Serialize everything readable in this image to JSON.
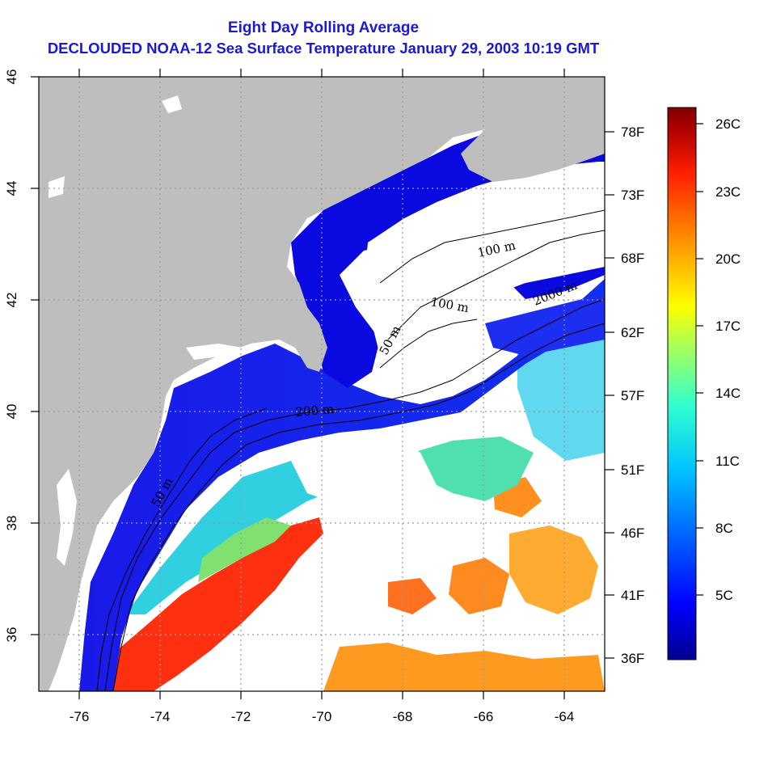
{
  "title": {
    "line1": "Eight Day Rolling Average",
    "line2": "DECLOUDED NOAA-12 Sea Surface Temperature January 29, 2003 10:19 GMT"
  },
  "map": {
    "lon_range": [
      -77,
      -63
    ],
    "lat_range": [
      35,
      46
    ],
    "lon_ticks": [
      "-76",
      "-74",
      "-72",
      "-70",
      "-68",
      "-66",
      "-64"
    ],
    "lat_ticks": [
      "36",
      "38",
      "40",
      "42",
      "44",
      "46"
    ],
    "grid": "dotted",
    "colors": {
      "land": "#bebebe",
      "cloud_no_data": "#ffffff",
      "grid": "#9a9a9a"
    },
    "contour_labels": [
      "100 m",
      "100 m",
      "2000 m",
      "50 m",
      "200 m",
      "50 m"
    ]
  },
  "fahrenheit_scale": {
    "labels": [
      "78F",
      "73F",
      "68F",
      "62F",
      "57F",
      "51F",
      "46F",
      "41F",
      "36F"
    ]
  },
  "colorbar": {
    "labels": [
      "26C",
      "23C",
      "20C",
      "17C",
      "14C",
      "11C",
      "8C",
      "5C"
    ],
    "colors": [
      "#00008f",
      "#0000ff",
      "#0060ff",
      "#00c0ff",
      "#30ffcf",
      "#a0ff60",
      "#ffff00",
      "#ff9000",
      "#ff2000",
      "#9f0000",
      "#800000"
    ]
  }
}
